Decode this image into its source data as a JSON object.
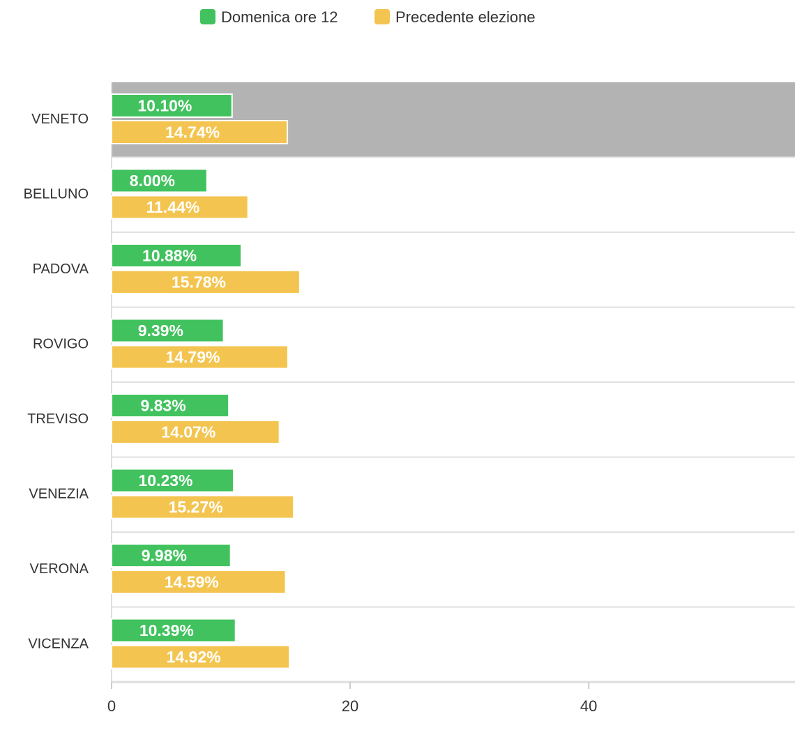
{
  "chart_data": {
    "type": "hbar",
    "categories": [
      "VENETO",
      "BELLUNO",
      "PADOVA",
      "ROVIGO",
      "TREVISO",
      "VENEZIA",
      "VERONA",
      "VICENZA"
    ],
    "series": [
      {
        "name": "Domenica ore 12",
        "color": "#41c25e",
        "values": [
          10.1,
          8.0,
          10.88,
          9.39,
          9.83,
          10.23,
          9.98,
          10.39
        ],
        "value_labels": [
          "10.10%",
          "8.00%",
          "10.88%",
          "9.39%",
          "9.83%",
          "10.23%",
          "9.98%",
          "10.39%"
        ]
      },
      {
        "name": "Precedente elezione",
        "color": "#f3c550",
        "values": [
          14.74,
          11.44,
          15.78,
          14.79,
          14.07,
          15.27,
          14.59,
          14.92
        ],
        "value_labels": [
          "14.74%",
          "11.44%",
          "15.78%",
          "14.79%",
          "14.07%",
          "15.27%",
          "14.59%",
          "14.92%"
        ]
      }
    ],
    "xlim": [
      0,
      57.3
    ],
    "xticks": [
      0,
      20,
      40
    ],
    "legend": "top"
  }
}
